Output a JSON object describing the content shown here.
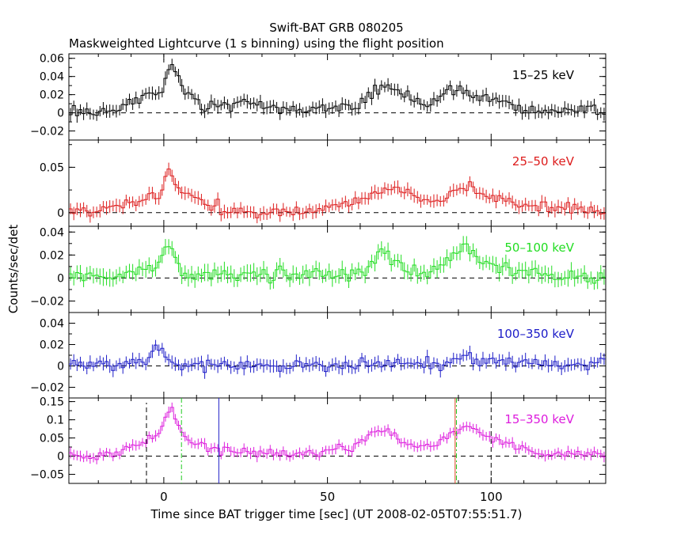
{
  "title": "Swift-BAT GRB 080205",
  "subtitle": "Maskweighted Lightcurve (1 s binning) using the flight position",
  "ylabel": "Counts/sec/det",
  "xlabel": "Time since BAT trigger time [sec] (UT 2008-02-05T07:55:51.7)",
  "chart_data": {
    "type": "line",
    "xlim": [
      -29,
      135
    ],
    "xticks": [
      0,
      50,
      100
    ],
    "xtick_labels": [
      "0",
      "50",
      "100"
    ],
    "panels": [
      {
        "label": "15–25 keV",
        "color": "#000000",
        "ylim": [
          -0.03,
          0.065
        ],
        "yticks": [
          -0.02,
          0,
          0.02,
          0.04,
          0.06
        ],
        "ytick_labels": [
          "−0.02",
          "0",
          "0.02",
          "0.04",
          "0.06"
        ],
        "knots": [
          [
            -29,
            0.0
          ],
          [
            -20,
            0.002
          ],
          [
            -12,
            0.005
          ],
          [
            -8,
            0.015
          ],
          [
            -4,
            0.022
          ],
          [
            -1,
            0.02
          ],
          [
            0,
            0.03
          ],
          [
            1,
            0.045
          ],
          [
            3,
            0.05
          ],
          [
            5,
            0.035
          ],
          [
            7,
            0.02
          ],
          [
            12,
            0.01
          ],
          [
            18,
            0.008
          ],
          [
            25,
            0.008
          ],
          [
            30,
            0.01
          ],
          [
            35,
            0.004
          ],
          [
            42,
            0.0
          ],
          [
            50,
            0.005
          ],
          [
            57,
            0.008
          ],
          [
            61,
            0.015
          ],
          [
            64,
            0.025
          ],
          [
            67,
            0.03
          ],
          [
            70,
            0.028
          ],
          [
            74,
            0.018
          ],
          [
            80,
            0.01
          ],
          [
            84,
            0.015
          ],
          [
            87,
            0.022
          ],
          [
            92,
            0.025
          ],
          [
            95,
            0.02
          ],
          [
            100,
            0.015
          ],
          [
            105,
            0.008
          ],
          [
            115,
            0.003
          ],
          [
            125,
            0.002
          ],
          [
            135,
            0.0
          ]
        ],
        "noise": 0.006
      },
      {
        "label": "25–50 keV",
        "color": "#dd1c1c",
        "ylim": [
          -0.015,
          0.08
        ],
        "yticks": [
          0,
          0.05
        ],
        "ytick_labels": [
          "0",
          "0.05"
        ],
        "knots": [
          [
            -29,
            0.0
          ],
          [
            -15,
            0.003
          ],
          [
            -8,
            0.012
          ],
          [
            -4,
            0.022
          ],
          [
            -1,
            0.018
          ],
          [
            0,
            0.03
          ],
          [
            1,
            0.052
          ],
          [
            2,
            0.045
          ],
          [
            4,
            0.03
          ],
          [
            8,
            0.018
          ],
          [
            15,
            0.005
          ],
          [
            25,
            0.003
          ],
          [
            40,
            0.0
          ],
          [
            50,
            0.005
          ],
          [
            60,
            0.015
          ],
          [
            65,
            0.025
          ],
          [
            70,
            0.028
          ],
          [
            75,
            0.02
          ],
          [
            82,
            0.01
          ],
          [
            86,
            0.02
          ],
          [
            90,
            0.025
          ],
          [
            93,
            0.03
          ],
          [
            97,
            0.02
          ],
          [
            103,
            0.015
          ],
          [
            110,
            0.008
          ],
          [
            120,
            0.005
          ],
          [
            135,
            0.0
          ]
        ],
        "noise": 0.006
      },
      {
        "label": "50–100 keV",
        "color": "#22dd22",
        "ylim": [
          -0.03,
          0.045
        ],
        "yticks": [
          -0.02,
          0,
          0.02,
          0.04
        ],
        "ytick_labels": [
          "−0.02",
          "0",
          "0.02",
          "0.04"
        ],
        "knots": [
          [
            -29,
            0.0
          ],
          [
            -12,
            0.004
          ],
          [
            -6,
            0.01
          ],
          [
            -2,
            0.01
          ],
          [
            0,
            0.02
          ],
          [
            1,
            0.03
          ],
          [
            3,
            0.02
          ],
          [
            6,
            0.005
          ],
          [
            15,
            0.002
          ],
          [
            30,
            0.003
          ],
          [
            50,
            0.002
          ],
          [
            60,
            0.005
          ],
          [
            64,
            0.015
          ],
          [
            66,
            0.024
          ],
          [
            69,
            0.018
          ],
          [
            73,
            0.008
          ],
          [
            80,
            0.003
          ],
          [
            86,
            0.012
          ],
          [
            90,
            0.022
          ],
          [
            92,
            0.03
          ],
          [
            95,
            0.018
          ],
          [
            100,
            0.01
          ],
          [
            110,
            0.005
          ],
          [
            125,
            0.0
          ],
          [
            135,
            0.0
          ]
        ],
        "noise": 0.006
      },
      {
        "label": "100–350 keV",
        "color": "#1c1cc8",
        "ylim": [
          -0.03,
          0.05
        ],
        "yticks": [
          -0.02,
          0,
          0.02,
          0.04
        ],
        "ytick_labels": [
          "−0.02",
          "0",
          "0.02",
          "0.04"
        ],
        "knots": [
          [
            -29,
            0.003
          ],
          [
            -15,
            0.0
          ],
          [
            -5,
            0.004
          ],
          [
            -3,
            0.012
          ],
          [
            -1,
            0.022
          ],
          [
            1,
            0.008
          ],
          [
            5,
            0.002
          ],
          [
            20,
            0.0
          ],
          [
            50,
            0.001
          ],
          [
            70,
            0.003
          ],
          [
            85,
            0.002
          ],
          [
            90,
            0.008
          ],
          [
            92,
            0.01
          ],
          [
            96,
            0.004
          ],
          [
            110,
            0.002
          ],
          [
            135,
            0.003
          ]
        ],
        "noise": 0.005
      },
      {
        "label": "15–350 keV",
        "color": "#dd1cdd",
        "ylim": [
          -0.075,
          0.16
        ],
        "yticks": [
          -0.05,
          0,
          0.05,
          0.1,
          0.15
        ],
        "ytick_labels": [
          "−0.05",
          "0",
          "0.05",
          "0.1",
          "0.15"
        ],
        "knots": [
          [
            -29,
            0.0
          ],
          [
            -15,
            0.005
          ],
          [
            -8,
            0.025
          ],
          [
            -4,
            0.05
          ],
          [
            -1,
            0.06
          ],
          [
            0,
            0.09
          ],
          [
            1,
            0.125
          ],
          [
            3,
            0.12
          ],
          [
            5,
            0.07
          ],
          [
            8,
            0.04
          ],
          [
            15,
            0.02
          ],
          [
            25,
            0.01
          ],
          [
            40,
            0.005
          ],
          [
            50,
            0.01
          ],
          [
            58,
            0.03
          ],
          [
            62,
            0.05
          ],
          [
            65,
            0.075
          ],
          [
            68,
            0.07
          ],
          [
            72,
            0.05
          ],
          [
            78,
            0.02
          ],
          [
            83,
            0.03
          ],
          [
            88,
            0.055
          ],
          [
            92,
            0.08
          ],
          [
            95,
            0.075
          ],
          [
            100,
            0.05
          ],
          [
            105,
            0.03
          ],
          [
            115,
            0.01
          ],
          [
            125,
            0.005
          ],
          [
            135,
            0.0
          ]
        ],
        "noise": 0.012,
        "markers": [
          {
            "x": -5.3,
            "color": "#000000",
            "style": "dashed",
            "from": "bottom"
          },
          {
            "x": 5.4,
            "color": "#22cc22",
            "style": "dashdot",
            "from": "top"
          },
          {
            "x": 16.8,
            "color": "#1c1cc8",
            "style": "solid",
            "from": "top"
          },
          {
            "x": 89.0,
            "color": "#dd4422",
            "style": "solid",
            "from": "top"
          },
          {
            "x": 89.4,
            "color": "#22cc22",
            "style": "dashdot",
            "from": "top"
          },
          {
            "x": 100.0,
            "color": "#000000",
            "style": "dashed",
            "from": "bottom"
          }
        ]
      }
    ],
    "top_marker_x": 0
  }
}
